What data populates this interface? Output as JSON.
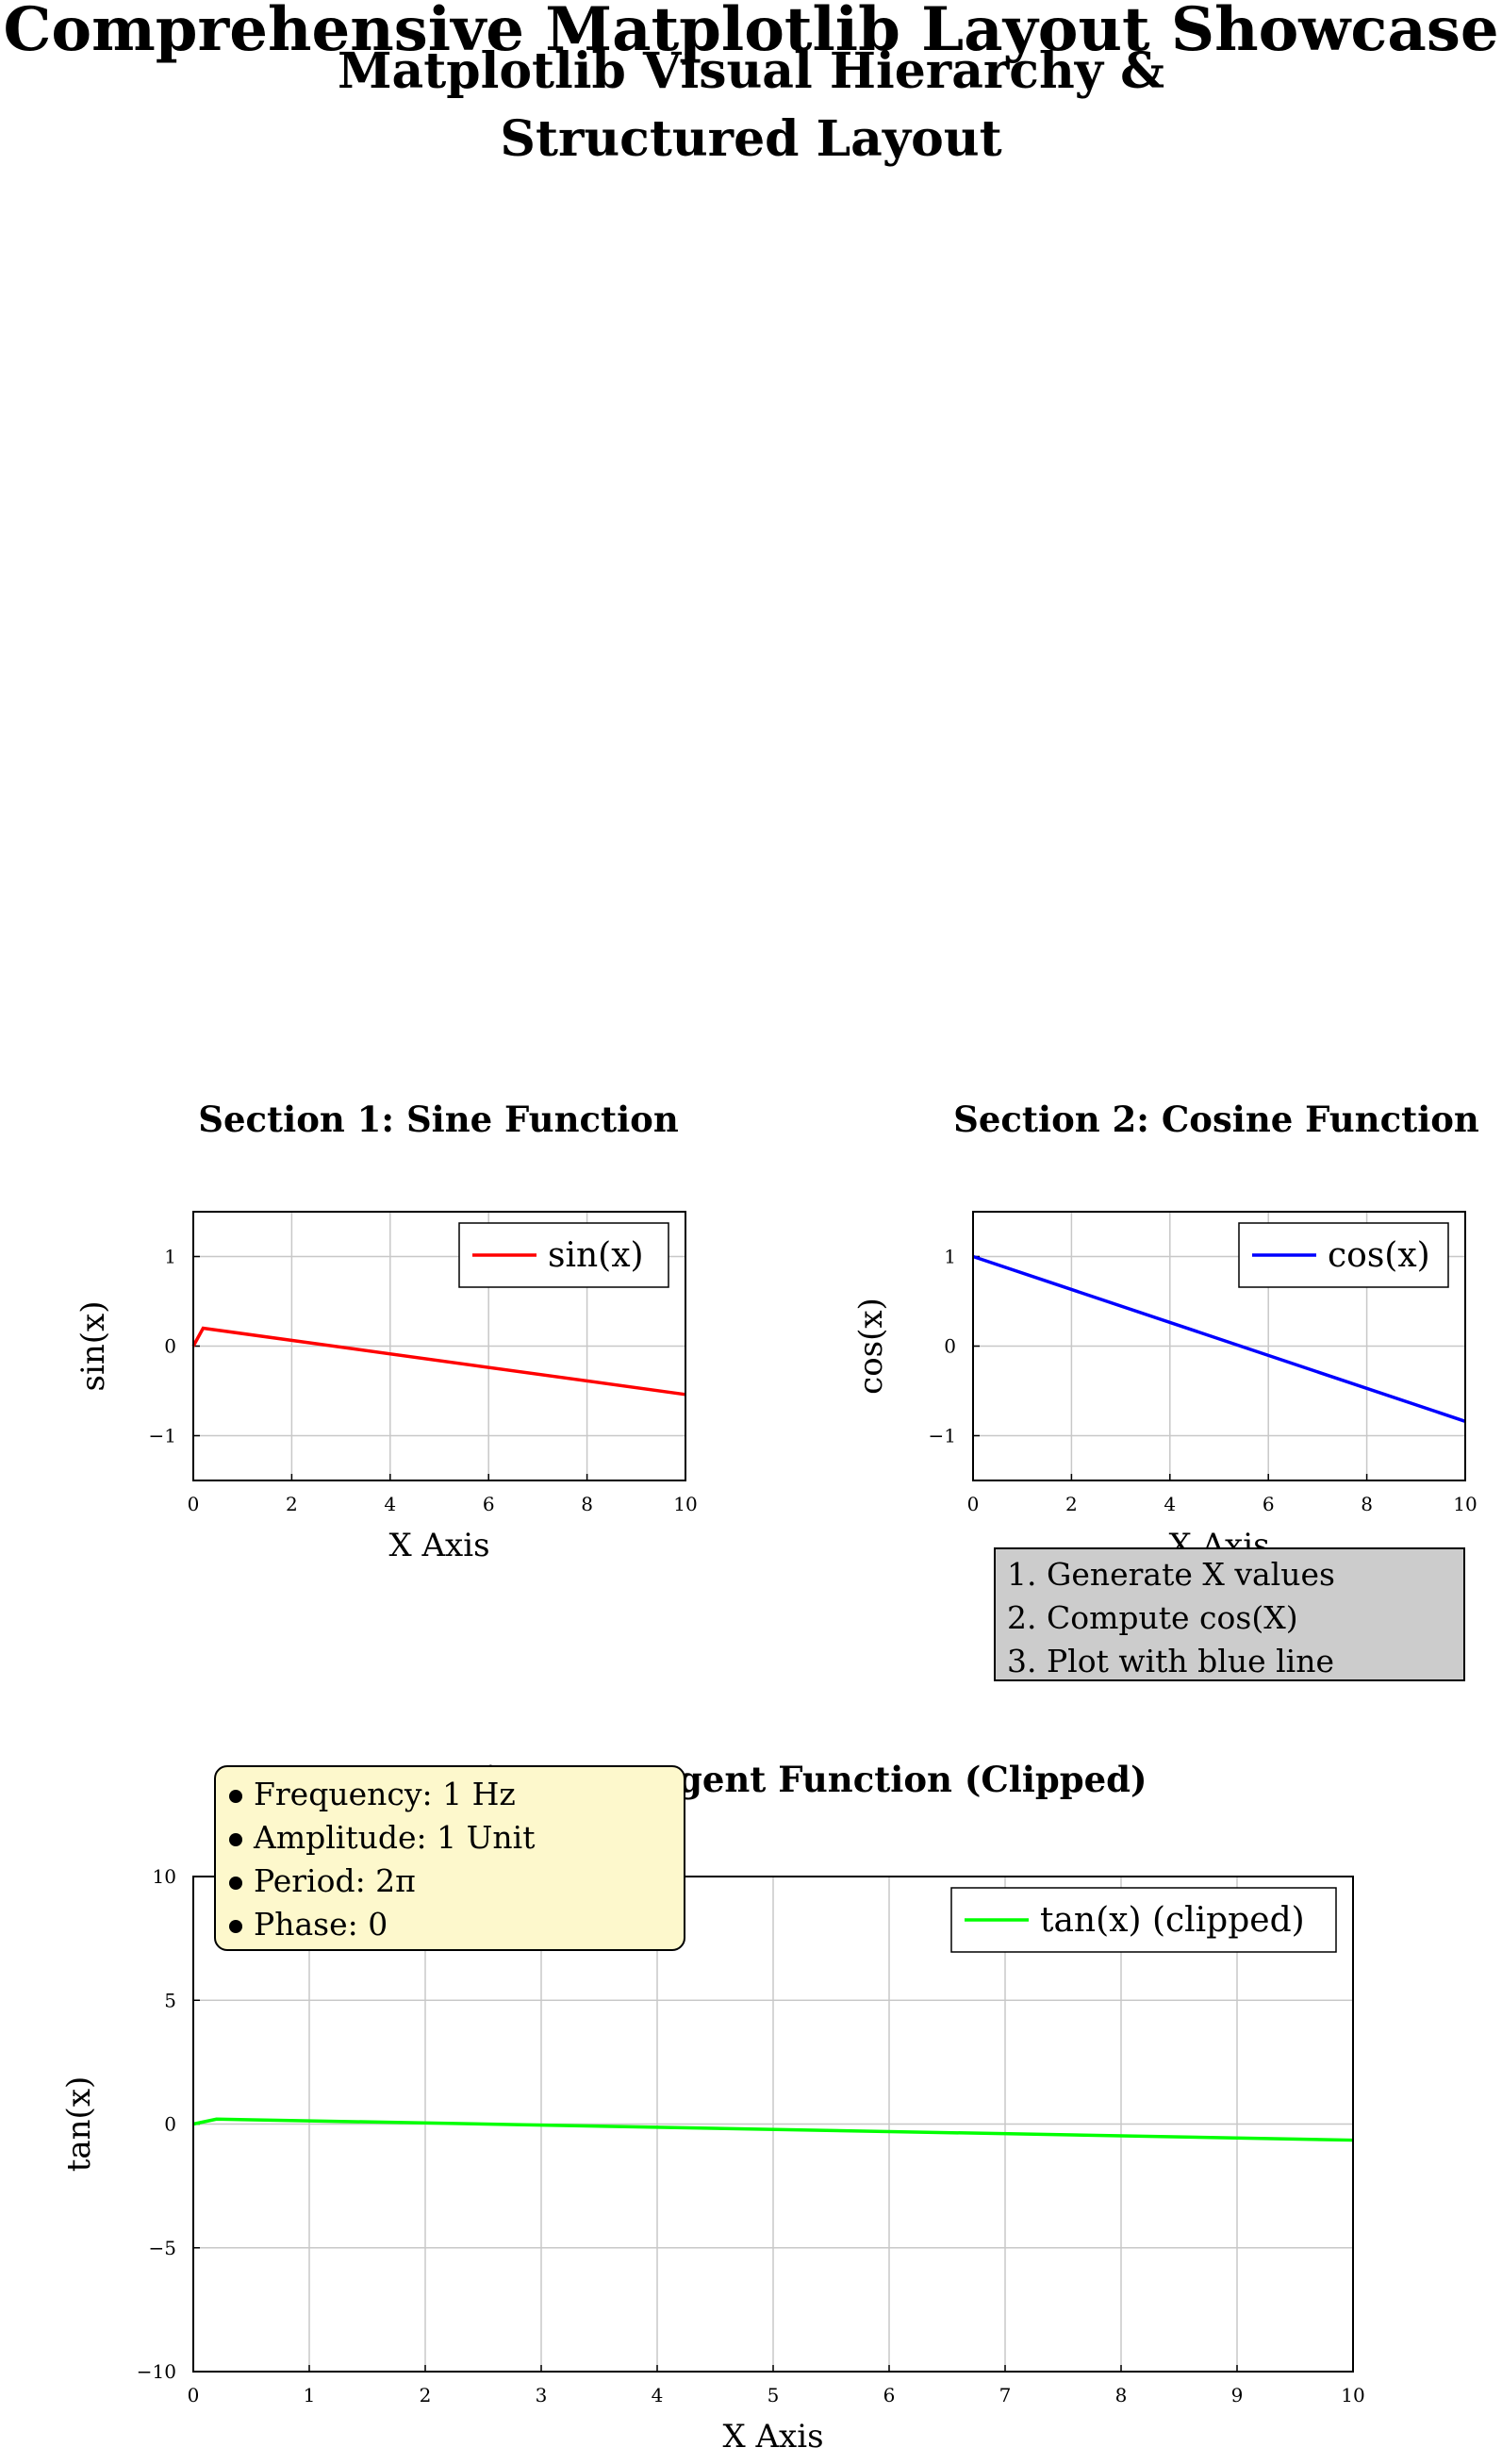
{
  "figure": {
    "title": "Comprehensive Matplotlib Layout Showcase",
    "subtitle": "Matplotlib Visual Hierarchy & Structured Layout"
  },
  "chart_data": [
    {
      "type": "line",
      "title": "Section 1: Sine Function",
      "xlabel": "X Axis",
      "ylabel": "sin(x)",
      "xlim": [
        0,
        10
      ],
      "ylim": [
        -1.5,
        1.5
      ],
      "xticks": [
        0,
        2,
        4,
        6,
        8,
        10
      ],
      "yticks": [
        -1,
        0,
        1
      ],
      "ytick_labels": [
        "−1",
        "0",
        "1"
      ],
      "grid": true,
      "legend": "top-right",
      "series": [
        {
          "name": "sin(x)",
          "color": "#ff0000",
          "x": [
            0,
            0.2,
            10
          ],
          "values": [
            0,
            0.2,
            -0.54
          ]
        }
      ]
    },
    {
      "type": "line",
      "title": "Section 2: Cosine Function",
      "xlabel": "X Axis",
      "ylabel": "cos(x)",
      "xlim": [
        0,
        10
      ],
      "ylim": [
        -1.5,
        1.5
      ],
      "xticks": [
        0,
        2,
        4,
        6,
        8,
        10
      ],
      "yticks": [
        -1,
        0,
        1
      ],
      "ytick_labels": [
        "−1",
        "0",
        "1"
      ],
      "grid": true,
      "legend": "top-right",
      "series": [
        {
          "name": "cos(x)",
          "color": "#0000ff",
          "x": [
            0,
            10
          ],
          "values": [
            1,
            -0.84
          ]
        }
      ]
    },
    {
      "type": "line",
      "title": "Section 3: Tangent Function (Clipped)",
      "xlabel": "X Axis",
      "ylabel": "tan(x)",
      "xlim": [
        0,
        10
      ],
      "ylim": [
        -10,
        10
      ],
      "xticks": [
        0,
        1,
        2,
        3,
        4,
        5,
        6,
        7,
        8,
        9,
        10
      ],
      "yticks": [
        -10,
        -5,
        0,
        5,
        10
      ],
      "ytick_labels": [
        "−10",
        "−5",
        "0",
        "5",
        "10"
      ],
      "grid": true,
      "legend": "top-right",
      "series": [
        {
          "name": "tan(x) (clipped)",
          "color": "#00ff00",
          "x": [
            0,
            0.2,
            10
          ],
          "values": [
            0,
            0.2,
            -0.65
          ]
        }
      ]
    }
  ],
  "notes": {
    "steps": [
      "1.  Generate X values",
      "2.  Compute cos(X)",
      "3.  Plot with blue line"
    ],
    "params": [
      "Frequency: 1 Hz",
      "Amplitude: 1 Unit",
      "Period: 2π",
      "Phase: 0"
    ]
  }
}
